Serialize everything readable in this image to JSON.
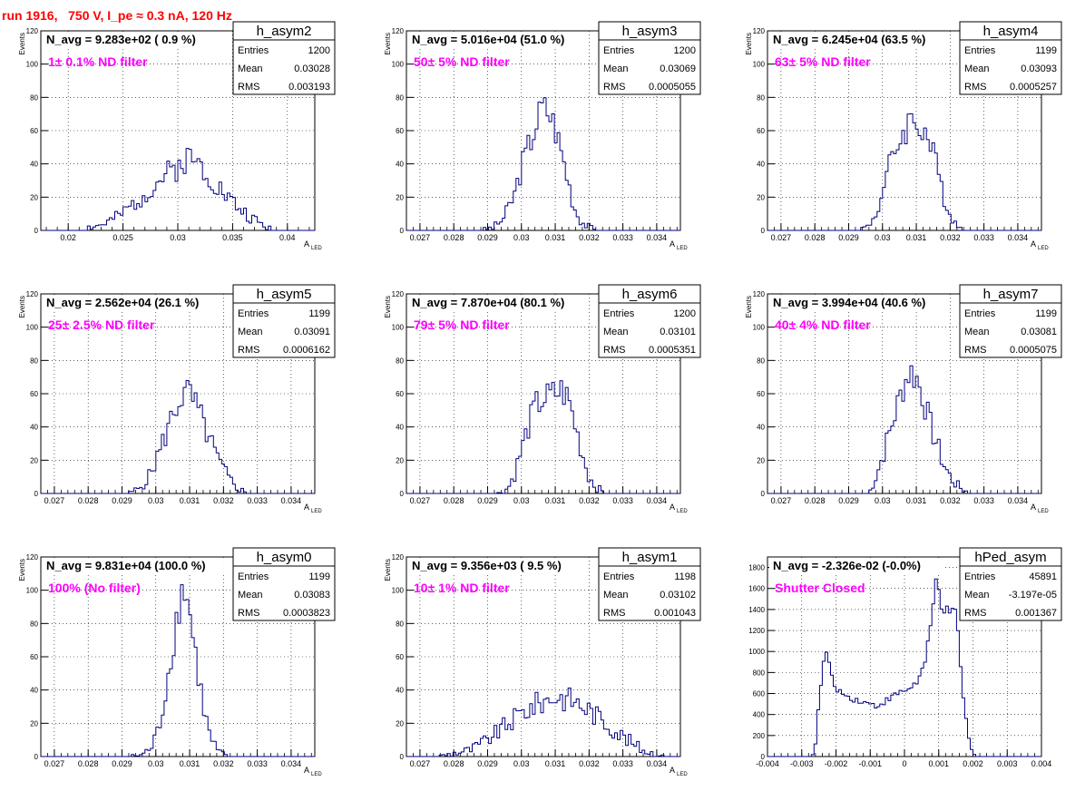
{
  "page_title": "run 1916,   750 V, I_pe ≈ 0.3 nA, 120 Hz",
  "colors": {
    "histogram": "#00007f",
    "annotation": "#ff00ff",
    "title": "#ff0000",
    "grid": "#000000"
  },
  "chart_data": [
    {
      "type": "bar",
      "title": "h_asym2",
      "navg": "N_avg = 9.283e+02 ( 0.9 %)",
      "annotation": "1± 0.1% ND filter",
      "ylabel": "Events",
      "xlabel_main": "A",
      "xlabel_sub": "LED",
      "xlim": [
        0.0175,
        0.0425
      ],
      "ylim": [
        0,
        120
      ],
      "xticks": [
        0.02,
        0.025,
        0.03,
        0.035,
        0.04
      ],
      "xtick_labels": [
        "0.02",
        "0.025",
        "0.03",
        "0.035",
        "0.04"
      ],
      "yticks": [
        0,
        20,
        40,
        60,
        80,
        100,
        120
      ],
      "ytick_labels": [
        "0",
        "20",
        "40",
        "60",
        "80",
        "100",
        "120"
      ],
      "stats": [
        [
          "Entries",
          "1200"
        ],
        [
          "Mean",
          "0.03028"
        ],
        [
          "RMS",
          "0.003193"
        ]
      ],
      "profile": [
        [
          0.021,
          0
        ],
        [
          0.0215,
          1
        ],
        [
          0.022,
          2
        ],
        [
          0.023,
          3
        ],
        [
          0.024,
          6
        ],
        [
          0.025,
          10
        ],
        [
          0.026,
          16
        ],
        [
          0.027,
          22
        ],
        [
          0.028,
          28
        ],
        [
          0.029,
          34
        ],
        [
          0.03,
          38
        ],
        [
          0.0305,
          42
        ],
        [
          0.031,
          44
        ],
        [
          0.032,
          40
        ],
        [
          0.033,
          32
        ],
        [
          0.034,
          24
        ],
        [
          0.035,
          17
        ],
        [
          0.036,
          11
        ],
        [
          0.037,
          6
        ],
        [
          0.038,
          2
        ],
        [
          0.039,
          0
        ]
      ],
      "seed": 2
    },
    {
      "type": "bar",
      "title": "h_asym3",
      "navg": "N_avg = 5.016e+04 (51.0 %)",
      "annotation": "50± 5% ND filter",
      "ylabel": "Events",
      "xlabel_main": "A",
      "xlabel_sub": "LED",
      "xlim": [
        0.0266,
        0.0347
      ],
      "ylim": [
        0,
        120
      ],
      "xticks": [
        0.027,
        0.028,
        0.029,
        0.03,
        0.031,
        0.032,
        0.033,
        0.034
      ],
      "xtick_labels": [
        "0.027",
        "0.028",
        "0.029",
        "0.03",
        "0.031",
        "0.032",
        "0.033",
        "0.034"
      ],
      "yticks": [
        0,
        20,
        40,
        60,
        80,
        100,
        120
      ],
      "ytick_labels": [
        "0",
        "20",
        "40",
        "60",
        "80",
        "100",
        "120"
      ],
      "stats": [
        [
          "Entries",
          "1200"
        ],
        [
          "Mean",
          "0.03069"
        ],
        [
          "RMS",
          "0.0005055"
        ]
      ],
      "profile": [
        [
          0.0288,
          0
        ],
        [
          0.0292,
          2
        ],
        [
          0.0295,
          8
        ],
        [
          0.0298,
          22
        ],
        [
          0.03,
          38
        ],
        [
          0.0302,
          50
        ],
        [
          0.0304,
          62
        ],
        [
          0.0306,
          74
        ],
        [
          0.0308,
          72
        ],
        [
          0.031,
          62
        ],
        [
          0.0312,
          46
        ],
        [
          0.0314,
          28
        ],
        [
          0.0316,
          12
        ],
        [
          0.0318,
          5
        ],
        [
          0.032,
          2
        ],
        [
          0.0322,
          0
        ]
      ],
      "seed": 3
    },
    {
      "type": "bar",
      "title": "h_asym4",
      "navg": "N_avg = 6.245e+04 (63.5 %)",
      "annotation": "63± 5% ND filter",
      "ylabel": "Events",
      "xlabel_main": "A",
      "xlabel_sub": "LED",
      "xlim": [
        0.0266,
        0.0347
      ],
      "ylim": [
        0,
        120
      ],
      "xticks": [
        0.027,
        0.028,
        0.029,
        0.03,
        0.031,
        0.032,
        0.033,
        0.034
      ],
      "xtick_labels": [
        "0.027",
        "0.028",
        "0.029",
        "0.03",
        "0.031",
        "0.032",
        "0.033",
        "0.034"
      ],
      "yticks": [
        0,
        20,
        40,
        60,
        80,
        100,
        120
      ],
      "ytick_labels": [
        "0",
        "20",
        "40",
        "60",
        "80",
        "100",
        "120"
      ],
      "stats": [
        [
          "Entries",
          "1199"
        ],
        [
          "Mean",
          "0.03093"
        ],
        [
          "RMS",
          "0.0005257"
        ]
      ],
      "profile": [
        [
          0.0293,
          0
        ],
        [
          0.0296,
          3
        ],
        [
          0.0298,
          10
        ],
        [
          0.03,
          22
        ],
        [
          0.0302,
          38
        ],
        [
          0.0304,
          50
        ],
        [
          0.0306,
          58
        ],
        [
          0.0308,
          66
        ],
        [
          0.031,
          64
        ],
        [
          0.0312,
          62
        ],
        [
          0.0314,
          52
        ],
        [
          0.0316,
          38
        ],
        [
          0.0318,
          22
        ],
        [
          0.032,
          10
        ],
        [
          0.0322,
          3
        ],
        [
          0.0324,
          0
        ]
      ],
      "seed": 4
    },
    {
      "type": "bar",
      "title": "h_asym5",
      "navg": "N_avg = 2.562e+04 (26.1 %)",
      "annotation": "25± 2.5% ND filter",
      "ylabel": "Events",
      "xlabel_main": "A",
      "xlabel_sub": "LED",
      "xlim": [
        0.0266,
        0.0347
      ],
      "ylim": [
        0,
        120
      ],
      "xticks": [
        0.027,
        0.028,
        0.029,
        0.03,
        0.031,
        0.032,
        0.033,
        0.034
      ],
      "xtick_labels": [
        "0.027",
        "0.028",
        "0.029",
        "0.03",
        "0.031",
        "0.032",
        "0.033",
        "0.034"
      ],
      "yticks": [
        0,
        20,
        40,
        60,
        80,
        100,
        120
      ],
      "ytick_labels": [
        "0",
        "20",
        "40",
        "60",
        "80",
        "100",
        "120"
      ],
      "stats": [
        [
          "Entries",
          "1199"
        ],
        [
          "Mean",
          "0.03091"
        ],
        [
          "RMS",
          "0.0006162"
        ]
      ],
      "profile": [
        [
          0.0292,
          0
        ],
        [
          0.0295,
          3
        ],
        [
          0.0298,
          10
        ],
        [
          0.03,
          20
        ],
        [
          0.0302,
          30
        ],
        [
          0.0304,
          42
        ],
        [
          0.0306,
          52
        ],
        [
          0.0308,
          60
        ],
        [
          0.031,
          60
        ],
        [
          0.0312,
          52
        ],
        [
          0.0314,
          42
        ],
        [
          0.0316,
          32
        ],
        [
          0.0318,
          22
        ],
        [
          0.032,
          14
        ],
        [
          0.0322,
          8
        ],
        [
          0.0324,
          4
        ],
        [
          0.0326,
          1
        ],
        [
          0.0328,
          0
        ]
      ],
      "seed": 5
    },
    {
      "type": "bar",
      "title": "h_asym6",
      "navg": "N_avg = 7.870e+04 (80.1 %)",
      "annotation": "79± 5% ND filter",
      "ylabel": "Events",
      "xlabel_main": "A",
      "xlabel_sub": "LED",
      "xlim": [
        0.0266,
        0.0347
      ],
      "ylim": [
        0,
        120
      ],
      "xticks": [
        0.027,
        0.028,
        0.029,
        0.03,
        0.031,
        0.032,
        0.033,
        0.034
      ],
      "xtick_labels": [
        "0.027",
        "0.028",
        "0.029",
        "0.03",
        "0.031",
        "0.032",
        "0.033",
        "0.034"
      ],
      "yticks": [
        0,
        20,
        40,
        60,
        80,
        100,
        120
      ],
      "ytick_labels": [
        "0",
        "20",
        "40",
        "60",
        "80",
        "100",
        "120"
      ],
      "stats": [
        [
          "Entries",
          "1200"
        ],
        [
          "Mean",
          "0.03101"
        ],
        [
          "RMS",
          "0.0005351"
        ]
      ],
      "profile": [
        [
          0.0293,
          0
        ],
        [
          0.0296,
          3
        ],
        [
          0.0298,
          12
        ],
        [
          0.03,
          26
        ],
        [
          0.0302,
          40
        ],
        [
          0.0304,
          52
        ],
        [
          0.0306,
          56
        ],
        [
          0.0308,
          58
        ],
        [
          0.031,
          60
        ],
        [
          0.0312,
          62
        ],
        [
          0.0314,
          56
        ],
        [
          0.0316,
          40
        ],
        [
          0.0318,
          24
        ],
        [
          0.032,
          10
        ],
        [
          0.0322,
          4
        ],
        [
          0.0324,
          1
        ],
        [
          0.0326,
          0
        ]
      ],
      "seed": 6
    },
    {
      "type": "bar",
      "title": "h_asym7",
      "navg": "N_avg = 3.994e+04 (40.6 %)",
      "annotation": "40± 4% ND filter",
      "ylabel": "Events",
      "xlabel_main": "A",
      "xlabel_sub": "LED",
      "xlim": [
        0.0266,
        0.0347
      ],
      "ylim": [
        0,
        120
      ],
      "xticks": [
        0.027,
        0.028,
        0.029,
        0.03,
        0.031,
        0.032,
        0.033,
        0.034
      ],
      "xtick_labels": [
        "0.027",
        "0.028",
        "0.029",
        "0.03",
        "0.031",
        "0.032",
        "0.033",
        "0.034"
      ],
      "yticks": [
        0,
        20,
        40,
        60,
        80,
        100,
        120
      ],
      "ytick_labels": [
        "0",
        "20",
        "40",
        "60",
        "80",
        "100",
        "120"
      ],
      "stats": [
        [
          "Entries",
          "1199"
        ],
        [
          "Mean",
          "0.03081"
        ],
        [
          "RMS",
          "0.0005075"
        ]
      ],
      "profile": [
        [
          0.0296,
          0
        ],
        [
          0.0298,
          10
        ],
        [
          0.03,
          22
        ],
        [
          0.0302,
          36
        ],
        [
          0.0304,
          50
        ],
        [
          0.0306,
          64
        ],
        [
          0.0308,
          74
        ],
        [
          0.031,
          70
        ],
        [
          0.0312,
          58
        ],
        [
          0.0314,
          42
        ],
        [
          0.0316,
          30
        ],
        [
          0.0318,
          18
        ],
        [
          0.032,
          10
        ],
        [
          0.0322,
          5
        ],
        [
          0.0324,
          2
        ],
        [
          0.0326,
          0
        ]
      ],
      "seed": 7
    },
    {
      "type": "bar",
      "title": "h_asym0",
      "navg": "N_avg = 9.831e+04 (100.0 %)",
      "annotation": "100% (No filter)",
      "ylabel": "Events",
      "xlabel_main": "A",
      "xlabel_sub": "LED",
      "xlim": [
        0.0266,
        0.0347
      ],
      "ylim": [
        0,
        120
      ],
      "xticks": [
        0.027,
        0.028,
        0.029,
        0.03,
        0.031,
        0.032,
        0.033,
        0.034
      ],
      "xtick_labels": [
        "0.027",
        "0.028",
        "0.029",
        "0.03",
        "0.031",
        "0.032",
        "0.033",
        "0.034"
      ],
      "yticks": [
        0,
        20,
        40,
        60,
        80,
        100,
        120
      ],
      "ytick_labels": [
        "0",
        "20",
        "40",
        "60",
        "80",
        "100",
        "120"
      ],
      "stats": [
        [
          "Entries",
          "1199"
        ],
        [
          "Mean",
          "0.03083"
        ],
        [
          "RMS",
          "0.0003823"
        ]
      ],
      "profile": [
        [
          0.0292,
          0
        ],
        [
          0.0296,
          1
        ],
        [
          0.0299,
          6
        ],
        [
          0.0301,
          18
        ],
        [
          0.0303,
          40
        ],
        [
          0.0305,
          68
        ],
        [
          0.0307,
          92
        ],
        [
          0.0308,
          102
        ],
        [
          0.0309,
          100
        ],
        [
          0.031,
          86
        ],
        [
          0.0312,
          58
        ],
        [
          0.0314,
          30
        ],
        [
          0.0316,
          12
        ],
        [
          0.0318,
          4
        ],
        [
          0.032,
          1
        ],
        [
          0.0321,
          0
        ]
      ],
      "seed": 8
    },
    {
      "type": "bar",
      "title": "h_asym1",
      "navg": "N_avg = 9.356e+03 ( 9.5 %)",
      "annotation": "10± 1% ND filter",
      "ylabel": "Events",
      "xlabel_main": "A",
      "xlabel_sub": "LED",
      "xlim": [
        0.0266,
        0.0347
      ],
      "ylim": [
        0,
        120
      ],
      "xticks": [
        0.027,
        0.028,
        0.029,
        0.03,
        0.031,
        0.032,
        0.033,
        0.034
      ],
      "xtick_labels": [
        "0.027",
        "0.028",
        "0.029",
        "0.03",
        "0.031",
        "0.032",
        "0.033",
        "0.034"
      ],
      "yticks": [
        0,
        20,
        40,
        60,
        80,
        100,
        120
      ],
      "ytick_labels": [
        "0",
        "20",
        "40",
        "60",
        "80",
        "100",
        "120"
      ],
      "stats": [
        [
          "Entries",
          "1198"
        ],
        [
          "Mean",
          "0.03102"
        ],
        [
          "RMS",
          "0.001043"
        ]
      ],
      "profile": [
        [
          0.0275,
          0
        ],
        [
          0.0278,
          1
        ],
        [
          0.028,
          2
        ],
        [
          0.0285,
          4
        ],
        [
          0.029,
          10
        ],
        [
          0.0295,
          18
        ],
        [
          0.03,
          26
        ],
        [
          0.0305,
          32
        ],
        [
          0.031,
          36
        ],
        [
          0.0315,
          34
        ],
        [
          0.032,
          28
        ],
        [
          0.0325,
          20
        ],
        [
          0.033,
          12
        ],
        [
          0.0335,
          5
        ],
        [
          0.034,
          1
        ],
        [
          0.0342,
          0
        ]
      ],
      "seed": 9
    },
    {
      "type": "bar",
      "title": "hPed_asym",
      "navg": "N_avg = -2.326e-02 (-0.0%)",
      "annotation": "Shutter Closed",
      "ylabel": "",
      "xlabel_main": "",
      "xlabel_sub": "",
      "xlim": [
        -0.004,
        0.004
      ],
      "ylim": [
        0,
        1900
      ],
      "xticks": [
        -0.004,
        -0.003,
        -0.002,
        -0.001,
        0,
        0.001,
        0.002,
        0.003,
        0.004
      ],
      "xtick_labels": [
        "-0.004",
        "-0.003",
        "-0.002",
        "-0.001",
        "0",
        "0.001",
        "0.002",
        "0.003",
        "0.004"
      ],
      "yticks": [
        0,
        200,
        400,
        600,
        800,
        1000,
        1200,
        1400,
        1600,
        1800
      ],
      "ytick_labels": [
        "0",
        "200",
        "400",
        "600",
        "800",
        "1000",
        "1200",
        "1400",
        "1600",
        "1800"
      ],
      "stats": [
        [
          "Entries",
          "45891"
        ],
        [
          "Mean",
          "-3.197e-05"
        ],
        [
          "RMS",
          "0.001367"
        ]
      ],
      "profile": [
        [
          -0.0027,
          0
        ],
        [
          -0.0026,
          120
        ],
        [
          -0.0025,
          500
        ],
        [
          -0.0024,
          820
        ],
        [
          -0.0023,
          1000
        ],
        [
          -0.0022,
          900
        ],
        [
          -0.0021,
          700
        ],
        [
          -0.0019,
          620
        ],
        [
          -0.0016,
          560
        ],
        [
          -0.0012,
          520
        ],
        [
          -0.0008,
          480
        ],
        [
          -0.0005,
          540
        ],
        [
          -0.0002,
          600
        ],
        [
          0.0001,
          640
        ],
        [
          0.0004,
          720
        ],
        [
          0.0006,
          900
        ],
        [
          0.0008,
          1300
        ],
        [
          0.0009,
          1650
        ],
        [
          0.00095,
          1700
        ],
        [
          0.0011,
          1400
        ],
        [
          0.0013,
          1380
        ],
        [
          0.0015,
          1360
        ],
        [
          0.0016,
          1050
        ],
        [
          0.0017,
          600
        ],
        [
          0.0018,
          350
        ],
        [
          0.0019,
          120
        ],
        [
          0.002,
          30
        ],
        [
          0.0021,
          0
        ]
      ],
      "seed": 10
    }
  ]
}
